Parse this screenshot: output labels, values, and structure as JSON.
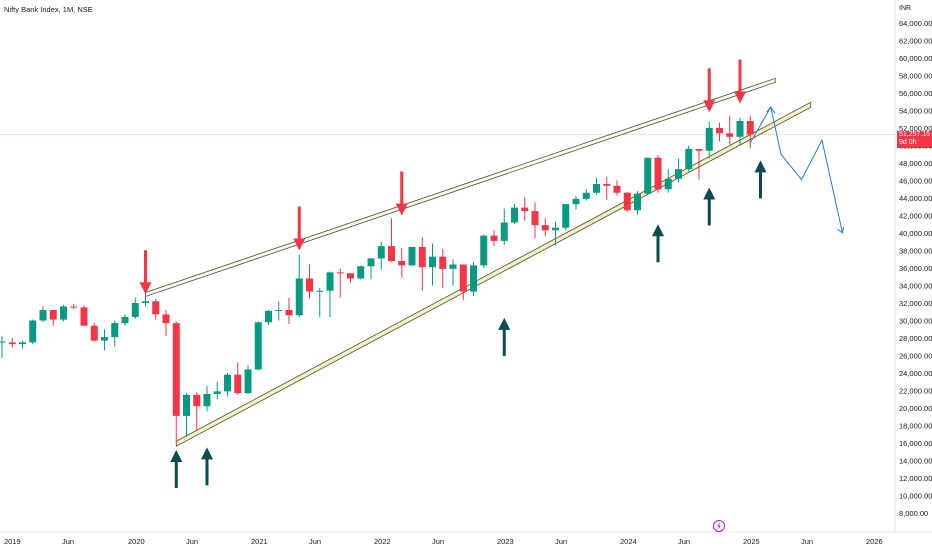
{
  "header": {
    "title": "Nifty Bank Index, 1M, NSE"
  },
  "price_axis": {
    "currency": "INR"
  },
  "last_price": {
    "value": "51,257.15",
    "countdown": "9d 0h",
    "color": "#f23645"
  },
  "colors": {
    "up": "#089981",
    "down": "#f23645",
    "channel": "#4a4e2c",
    "channel_fill": "#f5f0c8",
    "arrow_up": "#0b4a4f",
    "arrow_down": "#f23645",
    "projection": "#2f7bd6"
  },
  "chart_data": {
    "type": "candlestick",
    "title": "Nifty Bank Index, 1M, NSE",
    "y_scale": "linear",
    "ylim": [
      7000,
      65000
    ],
    "y_ticks": [
      "64,000.00",
      "62,000.00",
      "60,000.00",
      "58,000.00",
      "56,000.00",
      "54,000.00",
      "52,000.00",
      "50,000.00",
      "48,000.00",
      "46,000.00",
      "44,000.00",
      "42,000.00",
      "40,000.00",
      "38,000.00",
      "36,000.00",
      "34,000.00",
      "32,000.00",
      "30,000.00",
      "28,000.00",
      "26,000.00",
      "24,000.00",
      "22,000.00",
      "20,000.00",
      "18,000.00",
      "16,000.00",
      "14,000.00",
      "12,000.00",
      "10,000.00",
      "8,000.00"
    ],
    "x_ticks": [
      "2019",
      "Jun",
      "2020",
      "Jun",
      "2021",
      "Jun",
      "2022",
      "Jun",
      "2023",
      "Jun",
      "2024",
      "Jun",
      "2025",
      "Jun",
      "2026"
    ],
    "candles": [
      {
        "o": 27600,
        "h": 28200,
        "l": 25700,
        "c": 27600
      },
      {
        "o": 27500,
        "h": 28000,
        "l": 26900,
        "c": 27300
      },
      {
        "o": 27300,
        "h": 27700,
        "l": 26800,
        "c": 27500
      },
      {
        "o": 27500,
        "h": 30100,
        "l": 27300,
        "c": 30000
      },
      {
        "o": 30000,
        "h": 31600,
        "l": 29800,
        "c": 31200
      },
      {
        "o": 31200,
        "h": 31200,
        "l": 29400,
        "c": 30100
      },
      {
        "o": 30100,
        "h": 31800,
        "l": 29900,
        "c": 31600
      },
      {
        "o": 31600,
        "h": 31900,
        "l": 31300,
        "c": 31500
      },
      {
        "o": 31500,
        "h": 31700,
        "l": 29600,
        "c": 29400
      },
      {
        "o": 29400,
        "h": 29700,
        "l": 27600,
        "c": 27700
      },
      {
        "o": 27700,
        "h": 29000,
        "l": 26600,
        "c": 28100
      },
      {
        "o": 28100,
        "h": 30000,
        "l": 27000,
        "c": 29700
      },
      {
        "o": 29700,
        "h": 30700,
        "l": 29400,
        "c": 30400
      },
      {
        "o": 30400,
        "h": 32600,
        "l": 30200,
        "c": 32000
      },
      {
        "o": 32000,
        "h": 32800,
        "l": 31600,
        "c": 32200
      },
      {
        "o": 32200,
        "h": 32500,
        "l": 30100,
        "c": 30700
      },
      {
        "o": 30700,
        "h": 31200,
        "l": 28200,
        "c": 29700
      },
      {
        "o": 29700,
        "h": 29900,
        "l": 16100,
        "c": 19100
      },
      {
        "o": 19100,
        "h": 21700,
        "l": 16700,
        "c": 21500
      },
      {
        "o": 21500,
        "h": 21800,
        "l": 17400,
        "c": 20200
      },
      {
        "o": 20200,
        "h": 22500,
        "l": 19600,
        "c": 21600
      },
      {
        "o": 21600,
        "h": 23000,
        "l": 21000,
        "c": 21900
      },
      {
        "o": 21900,
        "h": 24000,
        "l": 21300,
        "c": 23800
      },
      {
        "o": 23800,
        "h": 25200,
        "l": 21500,
        "c": 21700
      },
      {
        "o": 21700,
        "h": 24900,
        "l": 21600,
        "c": 24400
      },
      {
        "o": 24400,
        "h": 29900,
        "l": 24300,
        "c": 29800
      },
      {
        "o": 29800,
        "h": 31200,
        "l": 29500,
        "c": 31100
      },
      {
        "o": 31100,
        "h": 32200,
        "l": 30000,
        "c": 31200
      },
      {
        "o": 31200,
        "h": 32600,
        "l": 29600,
        "c": 30600
      },
      {
        "o": 30600,
        "h": 37500,
        "l": 30400,
        "c": 34800
      },
      {
        "o": 34800,
        "h": 36400,
        "l": 32500,
        "c": 33300
      },
      {
        "o": 33300,
        "h": 33700,
        "l": 30400,
        "c": 33400
      },
      {
        "o": 33400,
        "h": 35600,
        "l": 30400,
        "c": 35500
      },
      {
        "o": 35500,
        "h": 35900,
        "l": 32600,
        "c": 35400
      },
      {
        "o": 35400,
        "h": 35300,
        "l": 34300,
        "c": 34800
      },
      {
        "o": 34800,
        "h": 36300,
        "l": 34700,
        "c": 36200
      },
      {
        "o": 36200,
        "h": 36900,
        "l": 34700,
        "c": 37100
      },
      {
        "o": 37100,
        "h": 39000,
        "l": 35800,
        "c": 38500
      },
      {
        "o": 38500,
        "h": 41700,
        "l": 36700,
        "c": 36800
      },
      {
        "o": 36800,
        "h": 38300,
        "l": 34900,
        "c": 36300
      },
      {
        "o": 36300,
        "h": 38400,
        "l": 36200,
        "c": 38400
      },
      {
        "o": 38400,
        "h": 39500,
        "l": 33400,
        "c": 36100
      },
      {
        "o": 36100,
        "h": 38800,
        "l": 34000,
        "c": 37300
      },
      {
        "o": 37300,
        "h": 38200,
        "l": 33700,
        "c": 35900
      },
      {
        "o": 35900,
        "h": 37000,
        "l": 34000,
        "c": 36400
      },
      {
        "o": 36400,
        "h": 36400,
        "l": 32300,
        "c": 33300
      },
      {
        "o": 33300,
        "h": 36700,
        "l": 32800,
        "c": 36300
      },
      {
        "o": 36300,
        "h": 39800,
        "l": 36000,
        "c": 39700
      },
      {
        "o": 39700,
        "h": 40300,
        "l": 38500,
        "c": 39100
      },
      {
        "o": 39100,
        "h": 42800,
        "l": 38600,
        "c": 41200
      },
      {
        "o": 41200,
        "h": 43300,
        "l": 41000,
        "c": 42900
      },
      {
        "o": 42900,
        "h": 44100,
        "l": 41400,
        "c": 42500
      },
      {
        "o": 42500,
        "h": 43500,
        "l": 39400,
        "c": 40900
      },
      {
        "o": 40900,
        "h": 41700,
        "l": 39600,
        "c": 40300
      },
      {
        "o": 40300,
        "h": 41300,
        "l": 38600,
        "c": 40600
      },
      {
        "o": 40600,
        "h": 43300,
        "l": 40300,
        "c": 43300
      },
      {
        "o": 43300,
        "h": 44200,
        "l": 42700,
        "c": 43900
      },
      {
        "o": 43900,
        "h": 45000,
        "l": 43700,
        "c": 44600
      },
      {
        "o": 44600,
        "h": 46300,
        "l": 44400,
        "c": 45600
      },
      {
        "o": 45600,
        "h": 46400,
        "l": 43800,
        "c": 45400
      },
      {
        "o": 45400,
        "h": 46000,
        "l": 44300,
        "c": 44600
      },
      {
        "o": 44600,
        "h": 44700,
        "l": 42400,
        "c": 42600
      },
      {
        "o": 42600,
        "h": 44800,
        "l": 42100,
        "c": 44500
      },
      {
        "o": 44500,
        "h": 48600,
        "l": 44400,
        "c": 48600
      },
      {
        "o": 48600,
        "h": 48900,
        "l": 44600,
        "c": 45000
      },
      {
        "o": 45000,
        "h": 47300,
        "l": 44600,
        "c": 46200
      },
      {
        "o": 46200,
        "h": 48500,
        "l": 45800,
        "c": 47300
      },
      {
        "o": 47300,
        "h": 50000,
        "l": 47000,
        "c": 49600
      },
      {
        "o": 49600,
        "h": 49600,
        "l": 46100,
        "c": 49400
      },
      {
        "o": 49400,
        "h": 52700,
        "l": 48500,
        "c": 52000
      },
      {
        "o": 52000,
        "h": 52600,
        "l": 50500,
        "c": 51400
      },
      {
        "o": 51400,
        "h": 53400,
        "l": 50100,
        "c": 51000
      },
      {
        "o": 51000,
        "h": 53200,
        "l": 50100,
        "c": 52800
      },
      {
        "o": 52800,
        "h": 53400,
        "l": 49700,
        "c": 51257
      }
    ],
    "channel_upper": [
      {
        "i": 14,
        "y": 33200
      },
      {
        "i": 73,
        "y": 56700
      }
    ],
    "channel_lower": [
      {
        "i": 17,
        "y": 16200
      },
      {
        "i": 75,
        "y": 52500
      }
    ],
    "down_arrows_at": [
      {
        "i": 14,
        "y": 33000
      },
      {
        "i": 29,
        "y": 38000
      },
      {
        "i": 39,
        "y": 42000
      },
      {
        "i": 69,
        "y": 53800
      },
      {
        "i": 72,
        "y": 54800
      }
    ],
    "up_arrows_at": [
      {
        "i": 17,
        "y": 15200
      },
      {
        "i": 20,
        "y": 15500
      },
      {
        "i": 49,
        "y": 30300
      },
      {
        "i": 64,
        "y": 41000
      },
      {
        "i": 69,
        "y": 45200
      },
      {
        "i": 74,
        "y": 48300
      }
    ],
    "projection_path": [
      {
        "i": 73,
        "y": 50300
      },
      {
        "i": 75,
        "y": 54400
      },
      {
        "i": 76,
        "y": 49000
      },
      {
        "i": 78,
        "y": 46100
      },
      {
        "i": 80,
        "y": 50600
      },
      {
        "i": 82,
        "y": 40000
      }
    ]
  }
}
